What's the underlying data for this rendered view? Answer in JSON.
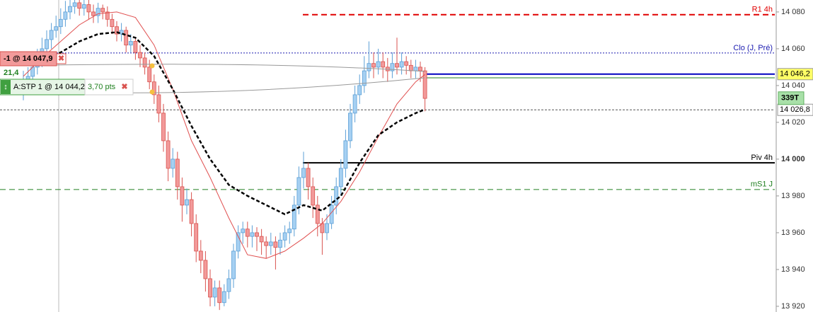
{
  "chart_data": {
    "type": "candlestick",
    "ylim": [
      13916.9,
      14086.5
    ],
    "yticks": [
      {
        "value": 14080,
        "label": "14 080"
      },
      {
        "value": 14060,
        "label": "14 060"
      },
      {
        "value": 14040,
        "label": "14 040"
      },
      {
        "value": 14020,
        "label": "14 020"
      },
      {
        "value": 14000,
        "label": "14 000",
        "bold": true
      },
      {
        "value": 13980,
        "label": "13 980"
      },
      {
        "value": 13960,
        "label": "13 960"
      },
      {
        "value": 13940,
        "label": "13 940"
      },
      {
        "value": 13920,
        "label": "13 920"
      }
    ],
    "up_color": "#a6d0f2",
    "up_stroke": "#5b9fd6",
    "down_color": "#f29a9a",
    "down_stroke": "#d9534f",
    "ohlc": [
      [
        14036,
        14048,
        14032,
        14040
      ],
      [
        14040,
        14050,
        14036,
        14045
      ],
      [
        14045,
        14056,
        14040,
        14050
      ],
      [
        14050,
        14060,
        14046,
        14055
      ],
      [
        14055,
        14066,
        14050,
        14060
      ],
      [
        14060,
        14070,
        14056,
        14065
      ],
      [
        14065,
        14074,
        14060,
        14070
      ],
      [
        14070,
        14078,
        14066,
        14072
      ],
      [
        14072,
        14082,
        14068,
        14076
      ],
      [
        14076,
        14086,
        14072,
        14080
      ],
      [
        14080,
        14088,
        14076,
        14083
      ],
      [
        14083,
        14090,
        14079,
        14085
      ],
      [
        14085,
        14088,
        14078,
        14082
      ],
      [
        14082,
        14088,
        14078,
        14084
      ],
      [
        14084,
        14087,
        14076,
        14080
      ],
      [
        14080,
        14084,
        14074,
        14078
      ],
      [
        14078,
        14085,
        14074,
        14082
      ],
      [
        14082,
        14084,
        14076,
        14080
      ],
      [
        14080,
        14083,
        14072,
        14076
      ],
      [
        14076,
        14079,
        14068,
        14072
      ],
      [
        14072,
        14075,
        14064,
        14068
      ],
      [
        14068,
        14074,
        14064,
        14070
      ],
      [
        14070,
        14072,
        14058,
        14062
      ],
      [
        14062,
        14068,
        14058,
        14064
      ],
      [
        14064,
        14066,
        14054,
        14058
      ],
      [
        14058,
        14062,
        14050,
        14055
      ],
      [
        14055,
        14058,
        14046,
        14050
      ],
      [
        14050,
        14054,
        14038,
        14042
      ],
      [
        14042,
        14046,
        14030,
        14035
      ],
      [
        14035,
        14040,
        14020,
        14025
      ],
      [
        14025,
        14030,
        14004,
        14010
      ],
      [
        14010,
        14015,
        13988,
        13995
      ],
      [
        13995,
        14006,
        13990,
        14000
      ],
      [
        14000,
        14004,
        13978,
        13985
      ],
      [
        13985,
        13990,
        13966,
        13975
      ],
      [
        13975,
        13984,
        13970,
        13978
      ],
      [
        13978,
        13982,
        13958,
        13965
      ],
      [
        13965,
        13970,
        13944,
        13950
      ],
      [
        13950,
        13956,
        13938,
        13945
      ],
      [
        13945,
        13950,
        13928,
        13935
      ],
      [
        13935,
        13940,
        13920,
        13925
      ],
      [
        13925,
        13934,
        13920,
        13930
      ],
      [
        13930,
        13934,
        13918,
        13922
      ],
      [
        13922,
        13932,
        13920,
        13928
      ],
      [
        13928,
        13940,
        13924,
        13935
      ],
      [
        13935,
        13954,
        13930,
        13950
      ],
      [
        13950,
        13964,
        13946,
        13960
      ],
      [
        13960,
        13966,
        13954,
        13962
      ],
      [
        13962,
        13966,
        13952,
        13958
      ],
      [
        13958,
        13964,
        13952,
        13960
      ],
      [
        13960,
        13963,
        13950,
        13958
      ],
      [
        13958,
        13962,
        13948,
        13955
      ],
      [
        13955,
        13958,
        13946,
        13953
      ],
      [
        13953,
        13960,
        13948,
        13955
      ],
      [
        13955,
        13958,
        13940,
        13952
      ],
      [
        13952,
        13960,
        13948,
        13956
      ],
      [
        13956,
        13964,
        13952,
        13960
      ],
      [
        13960,
        13966,
        13954,
        13962
      ],
      [
        13962,
        13980,
        13958,
        13975
      ],
      [
        13975,
        13996,
        13970,
        13990
      ],
      [
        13990,
        14004,
        13984,
        13995
      ],
      [
        13995,
        13998,
        13978,
        13985
      ],
      [
        13985,
        13990,
        13968,
        13975
      ],
      [
        13975,
        13980,
        13958,
        13965
      ],
      [
        13965,
        13968,
        13948,
        13960
      ],
      [
        13960,
        13970,
        13956,
        13965
      ],
      [
        13965,
        13980,
        13962,
        13975
      ],
      [
        13975,
        13990,
        13970,
        13985
      ],
      [
        13985,
        14000,
        13980,
        13995
      ],
      [
        13995,
        14016,
        13990,
        14010
      ],
      [
        14010,
        14030,
        14006,
        14025
      ],
      [
        14025,
        14040,
        14020,
        14035
      ],
      [
        14035,
        14046,
        14030,
        14040
      ],
      [
        14040,
        14056,
        14036,
        14048
      ],
      [
        14048,
        14064,
        14044,
        14052
      ],
      [
        14052,
        14058,
        14044,
        14050
      ],
      [
        14050,
        14060,
        14046,
        14053
      ],
      [
        14053,
        14058,
        14044,
        14050
      ],
      [
        14050,
        14055,
        14042,
        14048
      ],
      [
        14048,
        14058,
        14044,
        14052
      ],
      [
        14052,
        14066,
        14046,
        14050
      ],
      [
        14050,
        14058,
        14046,
        14053
      ],
      [
        14053,
        14056,
        14046,
        14051
      ],
      [
        14051,
        14054,
        14044,
        14048
      ],
      [
        14048,
        14054,
        14044,
        14050
      ],
      [
        14050,
        14053,
        14042,
        14048
      ],
      [
        14048,
        14050,
        14026,
        14033
      ]
    ],
    "moving_averages": [
      {
        "color": "#e05050",
        "style": "solid",
        "x": [
          0,
          4,
          8,
          12,
          16,
          20,
          24,
          28,
          32,
          36,
          40,
          44,
          48,
          52,
          56,
          60,
          64,
          68,
          72,
          76,
          80,
          84,
          86
        ],
        "values": [
          14045,
          14055,
          14064,
          14073,
          14079,
          14080,
          14077,
          14062,
          14038,
          14010,
          13990,
          13968,
          13948,
          13946,
          13950,
          13957,
          13965,
          13977,
          13993,
          14012,
          14030,
          14042,
          14046
        ]
      },
      {
        "color": "#000000",
        "style": "dashed",
        "x": [
          2,
          8,
          12,
          16,
          20,
          24,
          28,
          32,
          36,
          40,
          44,
          48,
          52,
          56,
          60,
          64,
          68,
          72,
          76,
          80,
          84,
          86
        ],
        "values": [
          14052,
          14058,
          14064,
          14068,
          14069,
          14066,
          14056,
          14038,
          14018,
          14000,
          13986,
          13980,
          13975,
          13970,
          13975,
          13972,
          13980,
          13998,
          14013,
          14020,
          14025,
          14027
        ]
      }
    ],
    "levels": [
      {
        "label": "R1 4h",
        "value": 14078.5,
        "color": "#e00000",
        "style": "dashed"
      },
      {
        "label": "Clo (J, Pré)",
        "value": 14057.7,
        "color": "#1a1ab0",
        "style": "dotted"
      },
      {
        "label": "Piv 4h",
        "value": 13998,
        "color": "#000000",
        "style": "solid"
      },
      {
        "label": "mS1 J",
        "value": 13983.5,
        "color": "#208020",
        "style": "dashed"
      }
    ],
    "price_markers": [
      {
        "value": 14046.2,
        "label": "14 046,2",
        "color": "#0000c0",
        "background": "#ffff66"
      },
      {
        "value": 14026.8,
        "label": "14 026,8",
        "color": "#555555",
        "background": "#ffffff"
      }
    ],
    "stop_level": 14044.2,
    "volume_label": "339T"
  },
  "orders": {
    "sell": "-1 @ 14 047,9",
    "pnl": "21,4",
    "stop": "A:STP  1 @ 14 044,2",
    "stop_distance": "3,70 pts"
  }
}
